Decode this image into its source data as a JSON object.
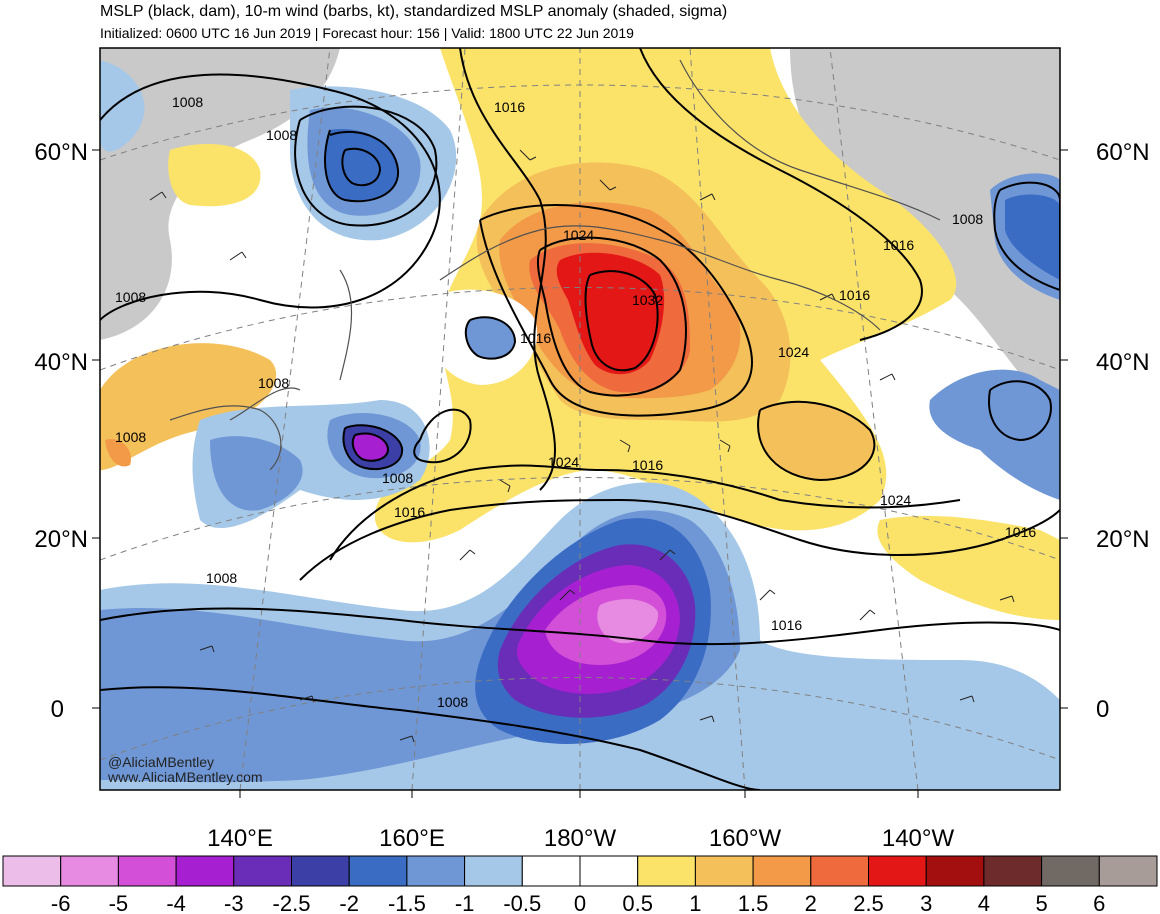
{
  "header": {
    "title": "MSLP (black, dam), 10-m wind (barbs, kt), standardized MSLP anomaly (shaded, sigma)",
    "subtitle": "Initialized: 0600 UTC 16 Jun 2019 | Forecast hour: 156 | Valid: 1800 UTC 22 Jun 2019"
  },
  "map": {
    "lat_labels_left": [
      "60°N",
      "40°N",
      "20°N",
      "0"
    ],
    "lat_labels_right": [
      "60°N",
      "40°N",
      "20°N",
      "0"
    ],
    "lon_labels": [
      "140°E",
      "160°E",
      "180°W",
      "160°W",
      "140°W"
    ],
    "contour_labels": [
      "1008",
      "1008",
      "1008",
      "1008",
      "1008",
      "1008",
      "1008",
      "1008",
      "1016",
      "1016",
      "1016",
      "1016",
      "1016",
      "1016",
      "1016",
      "1024",
      "1024",
      "1024",
      "1024",
      "1032",
      "1008",
      "1016"
    ],
    "credit": [
      "@AliciaMBentley",
      "www.AliciaMBentley.com"
    ]
  },
  "colorbar": {
    "ticks": [
      "-6",
      "-5",
      "-4",
      "-3",
      "-2.5",
      "-2",
      "-1.5",
      "-1",
      "-0.5",
      "0",
      "0.5",
      "1",
      "1.5",
      "2",
      "2.5",
      "3",
      "4",
      "5",
      "6"
    ],
    "colors": [
      "#ebbde8",
      "#e68ae2",
      "#d44fd8",
      "#a61fd1",
      "#6a2db8",
      "#3b3fa6",
      "#3b6cc4",
      "#6f97d6",
      "#a6c8e8",
      "#ffffff",
      "#ffffff",
      "#fbe36a",
      "#f4c05a",
      "#f29a48",
      "#ef6a3c",
      "#e41717",
      "#a30f0f",
      "#6e2b2b",
      "#716964",
      "#a89c98"
    ]
  }
}
